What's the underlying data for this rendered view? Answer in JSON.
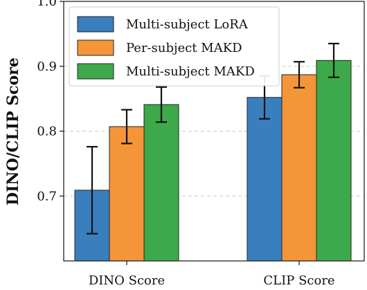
{
  "chart_data": {
    "type": "bar",
    "title": "",
    "xlabel": "",
    "ylabel": "DINO/CLIP Score",
    "categories": [
      "DINO Score",
      "CLIP Score"
    ],
    "ylim": [
      0.6,
      1.0
    ],
    "yticks": [
      0.7,
      0.8,
      0.9,
      1.0
    ],
    "ytick_labels": [
      "0.7",
      "0.8",
      "0.9",
      "1.0"
    ],
    "grid": "horizontal dashed",
    "legend_position": "top-left",
    "series": [
      {
        "name": "Multi-subject LoRA",
        "color": "#3a7fbd",
        "values": [
          0.709,
          0.852
        ],
        "errors": [
          0.067,
          0.033
        ]
      },
      {
        "name": "Per-subject MAKD",
        "color": "#f5953a",
        "values": [
          0.807,
          0.887
        ],
        "errors": [
          0.026,
          0.02
        ]
      },
      {
        "name": "Multi-subject MAKD",
        "color": "#3da94a",
        "values": [
          0.841,
          0.909
        ],
        "errors": [
          0.027,
          0.026
        ]
      }
    ]
  }
}
